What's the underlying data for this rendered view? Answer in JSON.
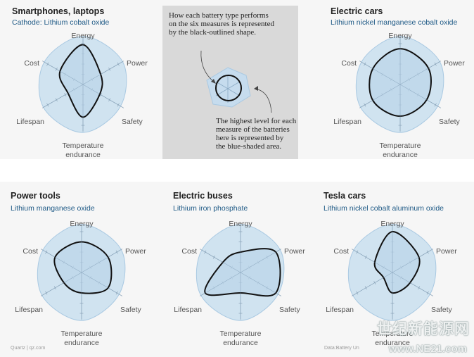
{
  "chart_data": [
    {
      "type": "radar",
      "title": "Smartphones, laptops",
      "subtitle": "Cathode: Lithium cobalt oxide",
      "axes": [
        "Energy",
        "Power",
        "Safety",
        "Temperature endurance",
        "Lifespan",
        "Cost"
      ],
      "scale": [
        0,
        4
      ],
      "series": [
        {
          "values": [
            3.9,
            2.0,
            1.9,
            3.2,
            1.7,
            2.6
          ]
        }
      ]
    },
    {
      "type": "radar",
      "title": "Electric cars",
      "subtitle": "Lithium nickel manganese cobalt oxide",
      "axes": [
        "Energy",
        "Power",
        "Safety",
        "Temperature endurance",
        "Lifespan",
        "Cost"
      ],
      "scale": [
        0,
        4
      ],
      "series": [
        {
          "values": [
            3.5,
            3.2,
            3.0,
            3.1,
            3.1,
            3.1
          ]
        }
      ]
    },
    {
      "type": "radar",
      "title": "Power tools",
      "subtitle": "Lithium manganese oxide",
      "axes": [
        "Energy",
        "Power",
        "Safety",
        "Temperature endurance",
        "Lifespan",
        "Cost"
      ],
      "scale": [
        0,
        4
      ],
      "series": [
        {
          "values": [
            3.0,
            3.0,
            3.0,
            2.0,
            2.0,
            3.0
          ]
        }
      ]
    },
    {
      "type": "radar",
      "title": "Electric buses",
      "subtitle": "Lithium iron phosphate",
      "axes": [
        "Energy",
        "Power",
        "Safety",
        "Temperature endurance",
        "Lifespan",
        "Cost"
      ],
      "scale": [
        0,
        4
      ],
      "series": [
        {
          "values": [
            2.0,
            4.0,
            4.0,
            2.0,
            4.0,
            2.0
          ]
        }
      ]
    },
    {
      "type": "radar",
      "title": "Tesla cars",
      "subtitle": "Lithium nickel cobalt aluminum oxide",
      "axes": [
        "Energy",
        "Power",
        "Safety",
        "Temperature endurance",
        "Lifespan",
        "Cost"
      ],
      "scale": [
        0,
        4
      ],
      "series": [
        {
          "values": [
            4.0,
            3.0,
            2.0,
            2.0,
            1.0,
            2.0
          ]
        }
      ]
    }
  ],
  "legend": {
    "text_top": [
      "How each battery type performs",
      "on the six measures is represented",
      "by the black-outlined shape."
    ],
    "text_bottom": [
      "The highest level for each",
      "measure of the batteries",
      "here is represented by",
      "the blue-shaded area."
    ]
  },
  "footer": {
    "left": "Quartz | qz.com",
    "right": "Data:Battery Un"
  },
  "watermark": {
    "line1": "世纪新能源网",
    "line2": "www.NE21.com"
  },
  "colors": {
    "shade": "#c9dfef",
    "shade_stroke": "#a9c9e2",
    "outline": "#111111",
    "subtitle": "#1f5a86",
    "legend_bg": "#d9d9d9"
  }
}
